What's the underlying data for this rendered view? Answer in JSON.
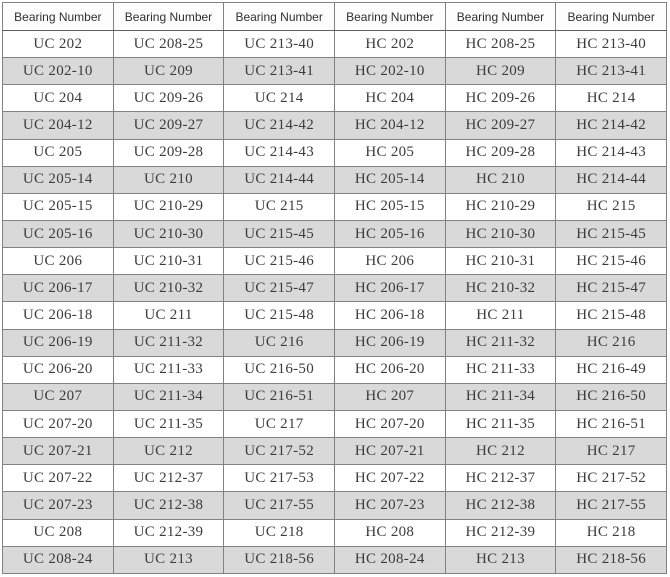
{
  "table": {
    "header_label": "Bearing Number",
    "column_count": 6,
    "rows": [
      [
        "UC 202",
        "UC 208-25",
        "UC 213-40",
        "HC 202",
        "HC 208-25",
        "HC 213-40"
      ],
      [
        "UC 202-10",
        "UC 209",
        "UC 213-41",
        "HC 202-10",
        "HC 209",
        "HC 213-41"
      ],
      [
        "UC 204",
        "UC 209-26",
        "UC 214",
        "HC 204",
        "HC 209-26",
        "HC 214"
      ],
      [
        "UC 204-12",
        "UC 209-27",
        "UC 214-42",
        "HC 204-12",
        "HC 209-27",
        "HC 214-42"
      ],
      [
        "UC 205",
        "UC 209-28",
        "UC 214-43",
        "HC 205",
        "HC 209-28",
        "HC 214-43"
      ],
      [
        "UC 205-14",
        "UC 210",
        "UC 214-44",
        "HC 205-14",
        "HC 210",
        "HC 214-44"
      ],
      [
        "UC 205-15",
        "UC 210-29",
        "UC 215",
        "HC 205-15",
        "HC 210-29",
        "HC 215"
      ],
      [
        "UC 205-16",
        "UC 210-30",
        "UC 215-45",
        "HC 205-16",
        "HC 210-30",
        "HC 215-45"
      ],
      [
        "UC 206",
        "UC 210-31",
        "UC 215-46",
        "HC 206",
        "HC 210-31",
        "HC 215-46"
      ],
      [
        "UC 206-17",
        "UC 210-32",
        "UC 215-47",
        "HC 206-17",
        "HC 210-32",
        "HC 215-47"
      ],
      [
        "UC 206-18",
        "UC 211",
        "UC 215-48",
        "HC 206-18",
        "HC 211",
        "HC 215-48"
      ],
      [
        "UC 206-19",
        "UC 211-32",
        "UC 216",
        "HC 206-19",
        "HC 211-32",
        "HC 216"
      ],
      [
        "UC 206-20",
        "UC 211-33",
        "UC 216-50",
        "HC 206-20",
        "HC 211-33",
        "HC 216-49"
      ],
      [
        "UC 207",
        "UC 211-34",
        "UC 216-51",
        "HC 207",
        "HC 211-34",
        "HC 216-50"
      ],
      [
        "UC 207-20",
        "UC 211-35",
        "UC 217",
        "HC 207-20",
        "HC 211-35",
        "HC 216-51"
      ],
      [
        "UC 207-21",
        "UC 212",
        "UC 217-52",
        "HC 207-21",
        "HC 212",
        "HC 217"
      ],
      [
        "UC 207-22",
        "UC 212-37",
        "UC 217-53",
        "HC 207-22",
        "HC 212-37",
        "HC 217-52"
      ],
      [
        "UC 207-23",
        "UC 212-38",
        "UC 217-55",
        "HC 207-23",
        "HC 212-38",
        "HC 217-55"
      ],
      [
        "UC 208",
        "UC 212-39",
        "UC 218",
        "HC 208",
        "HC 212-39",
        "HC 218"
      ],
      [
        "UC 208-24",
        "UC 213",
        "UC 218-56",
        "HC 208-24",
        "HC 213",
        "HC 218-56"
      ]
    ]
  },
  "colors": {
    "row_white": "#ffffff",
    "row_alt_gray": "#d9d9d9",
    "cell_border": "#828282",
    "outer_border": "#6e6e6e",
    "text": "#3c3c3c"
  }
}
